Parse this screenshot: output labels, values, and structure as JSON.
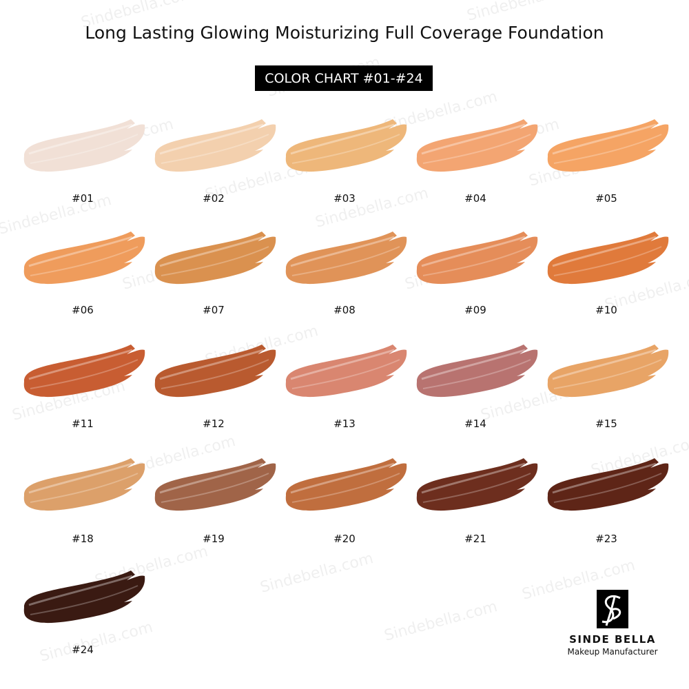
{
  "header": {
    "title": "Long Lasting Glowing Moisturizing Full Coverage Foundation",
    "subtitle": "COLOR CHART #01-#24"
  },
  "swatches": [
    {
      "label": "#01",
      "color": "#f1e0d6"
    },
    {
      "label": "#02",
      "color": "#f3d0ae"
    },
    {
      "label": "#03",
      "color": "#eeb77a"
    },
    {
      "label": "#04",
      "color": "#f3a572"
    },
    {
      "label": "#05",
      "color": "#f5a464"
    },
    {
      "label": "#06",
      "color": "#ef9c5c"
    },
    {
      "label": "#07",
      "color": "#da914f"
    },
    {
      "label": "#08",
      "color": "#e09358"
    },
    {
      "label": "#09",
      "color": "#e58d59"
    },
    {
      "label": "#10",
      "color": "#e07a3b"
    },
    {
      "label": "#11",
      "color": "#c85d32"
    },
    {
      "label": "#12",
      "color": "#b95a2f"
    },
    {
      "label": "#13",
      "color": "#d98670"
    },
    {
      "label": "#14",
      "color": "#b87370"
    },
    {
      "label": "#15",
      "color": "#e8a466"
    },
    {
      "label": "#18",
      "color": "#dca06a"
    },
    {
      "label": "#19",
      "color": "#a06448"
    },
    {
      "label": "#20",
      "color": "#c06e3e"
    },
    {
      "label": "#21",
      "color": "#6d2e1e"
    },
    {
      "label": "#23",
      "color": "#5e2517"
    },
    {
      "label": "#24",
      "color": "#3a1a12"
    }
  ],
  "brand": {
    "name": "SINDE BELLA",
    "tagline": "Makeup Manufacturer"
  },
  "watermark": "Sindebella.com"
}
